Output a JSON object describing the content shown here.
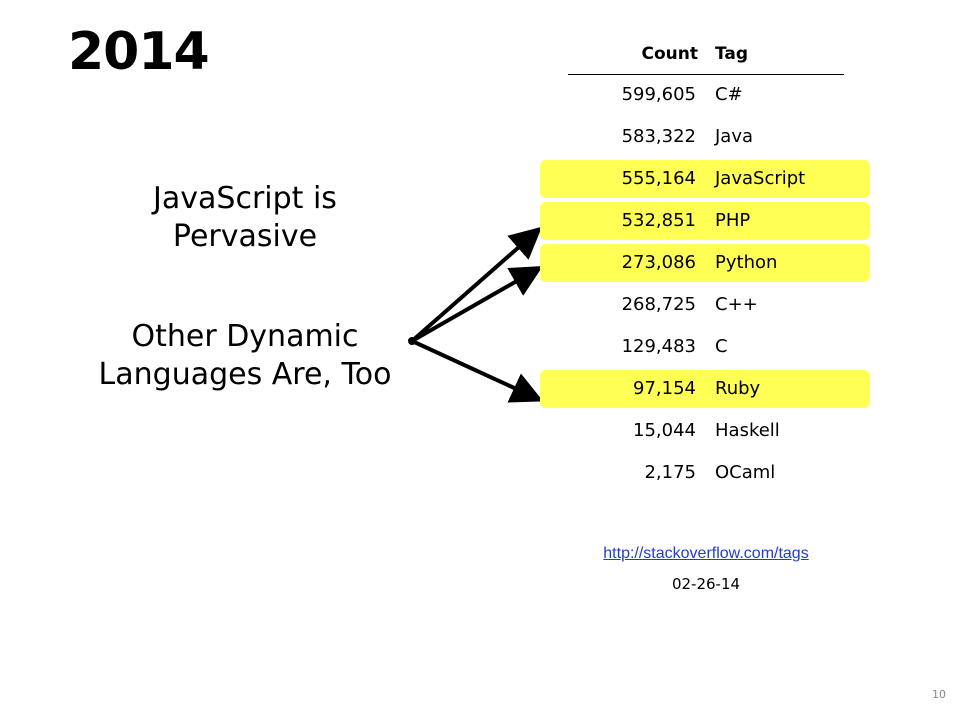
{
  "slide": {
    "title": "2014",
    "claims": [
      "JavaScript is Pervasive",
      "Other Dynamic Languages Are, Too"
    ],
    "table": {
      "headers": {
        "count": "Count",
        "tag": "Tag"
      },
      "rows": [
        {
          "count": "599,605",
          "tag": "C#",
          "highlighted": false
        },
        {
          "count": "583,322",
          "tag": "Java",
          "highlighted": false
        },
        {
          "count": "555,164",
          "tag": "JavaScript",
          "highlighted": true
        },
        {
          "count": "532,851",
          "tag": "PHP",
          "highlighted": true
        },
        {
          "count": "273,086",
          "tag": "Python",
          "highlighted": true
        },
        {
          "count": "268,725",
          "tag": "C++",
          "highlighted": false
        },
        {
          "count": "129,483",
          "tag": "C",
          "highlighted": false
        },
        {
          "count": "97,154",
          "tag": "Ruby",
          "highlighted": true
        },
        {
          "count": "15,044",
          "tag": "Haskell",
          "highlighted": false
        },
        {
          "count": "2,175",
          "tag": "OCaml",
          "highlighted": false
        }
      ],
      "highlight_color": "#ffff55"
    },
    "source_link": "http://stackoverflow.com/tags",
    "source_date": "02-26-14",
    "page_number": "10",
    "link_color": "#1f3cd6"
  }
}
